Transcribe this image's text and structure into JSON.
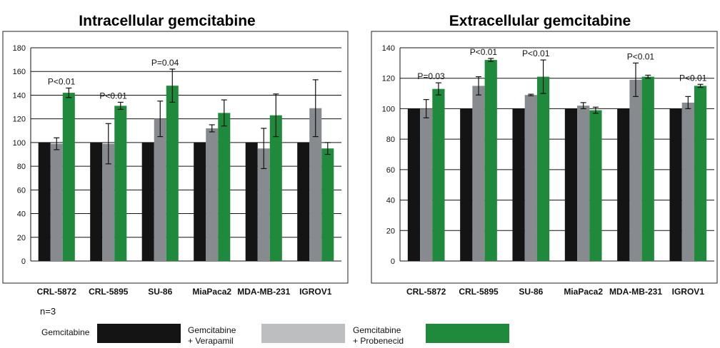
{
  "note": "n=3",
  "legend": [
    {
      "lines": [
        "Gemcitabine"
      ],
      "color": "#141414"
    },
    {
      "lines": [
        "Gemcitabine",
        "+ Verapamil"
      ],
      "color": "#bcbec0"
    },
    {
      "lines": [
        "Gemcitabine",
        "+ Probenecid"
      ],
      "color": "#1f8a3c"
    }
  ],
  "series_colors": [
    "#141414",
    "#878a8e",
    "#1f8a3c"
  ],
  "chart_data": [
    {
      "type": "bar",
      "title": "Intracellular gemcitabine",
      "categories": [
        "CRL-5872",
        "CRL-5895",
        "SU-86",
        "MiaPaca2",
        "MDA-MB-231",
        "IGROV1"
      ],
      "series": [
        {
          "values": [
            100,
            100,
            100,
            100,
            100,
            100
          ]
        },
        {
          "values": [
            99,
            99,
            120,
            112,
            95,
            129
          ],
          "errors": [
            5,
            17,
            15,
            3,
            17,
            24
          ]
        },
        {
          "values": [
            142,
            131,
            148,
            125,
            123,
            95
          ],
          "errors": [
            4,
            3,
            14,
            11,
            18,
            5
          ]
        }
      ],
      "annotations": [
        {
          "category": 0,
          "text": "P<0.01"
        },
        {
          "category": 1,
          "text": "P<0.01"
        },
        {
          "category": 2,
          "text": "P=0.04"
        }
      ],
      "ylim": [
        0,
        180
      ],
      "yticks": [
        0,
        20,
        40,
        60,
        80,
        100,
        120,
        140,
        160,
        180
      ],
      "grid": true
    },
    {
      "type": "bar",
      "title": "Extracellular gemcitabine",
      "categories": [
        "CRL-5872",
        "CRL-5895",
        "SU-86",
        "MiaPaca2",
        "MDA-MB-231",
        "IGROV1"
      ],
      "series": [
        {
          "values": [
            100,
            100,
            100,
            100,
            100,
            100
          ]
        },
        {
          "values": [
            100,
            115,
            109,
            102,
            119,
            104
          ],
          "errors": [
            6,
            6,
            0.5,
            2,
            11,
            4
          ]
        },
        {
          "values": [
            113,
            132,
            121,
            99,
            121,
            115
          ],
          "errors": [
            4,
            1,
            11,
            2,
            1,
            1
          ]
        }
      ],
      "annotations": [
        {
          "category": 0,
          "text": "P=0.03"
        },
        {
          "category": 1,
          "text": "P<0.01"
        },
        {
          "category": 2,
          "text": "P<0.01"
        },
        {
          "category": 4,
          "text": "P<0.01"
        },
        {
          "category": 5,
          "text": "P<0.01"
        }
      ],
      "ylim": [
        0,
        140
      ],
      "yticks": [
        0,
        20,
        40,
        60,
        80,
        100,
        120,
        140
      ],
      "grid": true
    }
  ]
}
